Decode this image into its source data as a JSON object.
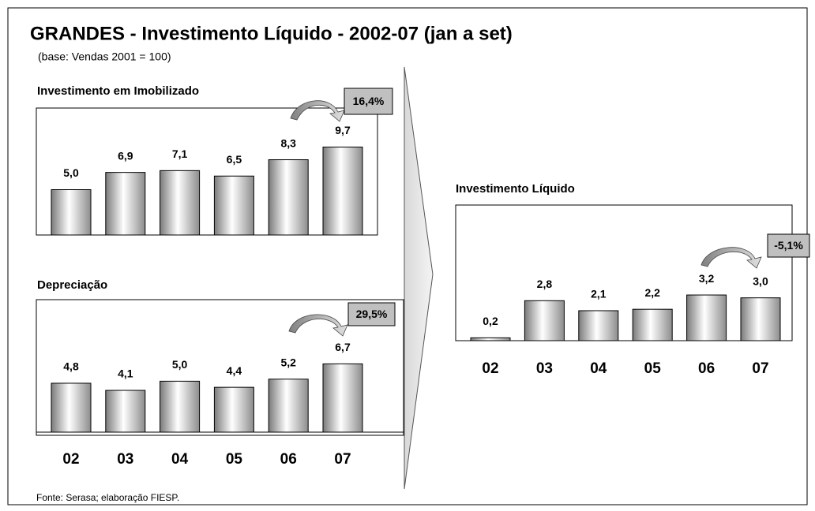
{
  "title": "GRANDES - Investimento Líquido - 2002-07 (jan a set)",
  "subtitle": "(base: Vendas 2001 = 100)",
  "source": "Fonte: Serasa; elaboração FIESP.",
  "chart_data": [
    {
      "type": "bar",
      "title": "Investimento em Imobilizado",
      "categories": [
        null,
        null,
        null,
        null,
        null,
        null
      ],
      "values": [
        5.0,
        6.9,
        7.1,
        6.5,
        8.3,
        9.7
      ],
      "value_labels": [
        "5,0",
        "6,9",
        "7,1",
        "6,5",
        "8,3",
        "9,7"
      ],
      "annotation": "16,4%",
      "ylim": [
        0,
        14
      ]
    },
    {
      "type": "bar",
      "title": "Depreciação",
      "categories": [
        "02",
        "03",
        "04",
        "05",
        "06",
        "07"
      ],
      "values": [
        4.8,
        4.1,
        5.0,
        4.4,
        5.2,
        6.7
      ],
      "value_labels": [
        "4,8",
        "4,1",
        "5,0",
        "4,4",
        "5,2",
        "6,7"
      ],
      "annotation": "29,5%",
      "ylim": [
        0,
        13
      ]
    },
    {
      "type": "bar",
      "title": "Investimento Líquido",
      "categories": [
        "02",
        "03",
        "04",
        "05",
        "06",
        "07"
      ],
      "values": [
        0.2,
        2.8,
        2.1,
        2.2,
        3.2,
        3.0
      ],
      "value_labels": [
        "0,2",
        "2,8",
        "2,1",
        "2,2",
        "3,2",
        "3,0"
      ],
      "annotation": "-5,1%",
      "ylim": [
        0,
        9.5
      ]
    }
  ]
}
